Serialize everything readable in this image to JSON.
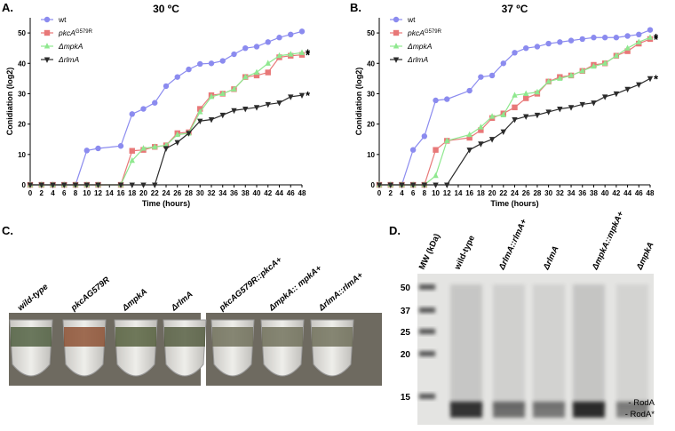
{
  "chart_data": [
    {
      "type": "line",
      "panel_label": "A.",
      "title": "30 ºC",
      "x_label": "Time (hours)",
      "y_label": "Conidiation (log2)",
      "xlim": [
        0,
        48
      ],
      "xticks": [
        0,
        2,
        4,
        6,
        8,
        10,
        12,
        14,
        16,
        18,
        20,
        22,
        24,
        26,
        28,
        30,
        32,
        34,
        36,
        38,
        40,
        42,
        44,
        46,
        48
      ],
      "ylim": [
        0,
        55
      ],
      "yticks": [
        0,
        10,
        20,
        30,
        40,
        50
      ],
      "legend": "top-left",
      "series": [
        {
          "name": "wt",
          "color": "#8b8bef",
          "marker": "circle",
          "x": [
            0,
            2,
            4,
            6,
            8,
            10,
            12,
            16,
            18,
            20,
            22,
            24,
            26,
            28,
            30,
            32,
            34,
            36,
            38,
            40,
            42,
            44,
            46,
            48
          ],
          "values": [
            0,
            0,
            0,
            0,
            0,
            11.3,
            12,
            12.8,
            23.3,
            25,
            27,
            32.5,
            35.5,
            38,
            39.8,
            40,
            40.8,
            43,
            45,
            45.5,
            47,
            48.5,
            49.5,
            50.5
          ]
        },
        {
          "name": "pkcA",
          "superscript": "G579R",
          "color": "#e87878",
          "marker": "square",
          "x": [
            0,
            2,
            4,
            6,
            8,
            10,
            12,
            16,
            18,
            20,
            22,
            24,
            26,
            28,
            30,
            32,
            34,
            36,
            38,
            40,
            42,
            44,
            46,
            48
          ],
          "values": [
            0,
            0,
            0,
            0,
            0,
            0,
            0,
            0,
            11.2,
            11.5,
            12.5,
            13,
            17,
            17.3,
            25,
            29.5,
            30,
            31.5,
            35.5,
            36,
            37,
            42,
            42.5,
            42.8
          ]
        },
        {
          "name": "ΔmpkA",
          "color": "#8fe88f",
          "marker": "triangle-up",
          "x": [
            0,
            2,
            4,
            6,
            8,
            10,
            12,
            16,
            18,
            20,
            22,
            24,
            26,
            28,
            30,
            32,
            34,
            36,
            38,
            40,
            42,
            44,
            46,
            48
          ],
          "values": [
            0,
            0,
            0,
            0,
            0,
            0,
            0,
            0,
            8,
            12,
            12.5,
            13,
            16.5,
            17,
            24,
            29,
            30,
            31.5,
            35.5,
            37,
            40,
            42.5,
            43,
            43.5
          ]
        },
        {
          "name": "ΔrlmA",
          "color": "#2b2b2b",
          "marker": "triangle-down",
          "x": [
            0,
            2,
            4,
            6,
            8,
            10,
            12,
            16,
            18,
            20,
            22,
            24,
            26,
            28,
            30,
            32,
            34,
            36,
            38,
            40,
            42,
            44,
            46,
            48
          ],
          "values": [
            0,
            0,
            0,
            0,
            0,
            0,
            0,
            0,
            0,
            0,
            0,
            12,
            14,
            17,
            21,
            21.5,
            23,
            24.5,
            25,
            25.5,
            26.5,
            27,
            29,
            29.5
          ]
        }
      ],
      "annotations": [
        {
          "text": "*",
          "series": 1
        },
        {
          "text": "*",
          "series": 2
        },
        {
          "text": "*",
          "series": 3
        }
      ]
    },
    {
      "type": "line",
      "panel_label": "B.",
      "title": "37 ºC",
      "x_label": "Time (hours)",
      "y_label": "Conidiation (log2)",
      "xlim": [
        0,
        48
      ],
      "xticks": [
        0,
        2,
        4,
        6,
        8,
        10,
        12,
        14,
        16,
        18,
        20,
        22,
        24,
        26,
        28,
        30,
        32,
        34,
        36,
        38,
        40,
        42,
        44,
        46,
        48
      ],
      "ylim": [
        0,
        55
      ],
      "yticks": [
        0,
        10,
        20,
        30,
        40,
        50
      ],
      "legend": "top-left",
      "series": [
        {
          "name": "wt",
          "color": "#8b8bef",
          "marker": "circle",
          "x": [
            0,
            2,
            4,
            6,
            8,
            10,
            12,
            16,
            18,
            20,
            22,
            24,
            26,
            28,
            30,
            32,
            34,
            36,
            38,
            40,
            42,
            44,
            46,
            48
          ],
          "values": [
            0,
            0,
            0,
            11.5,
            16,
            27.8,
            28.2,
            31,
            35.5,
            36,
            40,
            43.5,
            45,
            45.5,
            46.5,
            47,
            47.5,
            48,
            48.5,
            48.5,
            48.5,
            49,
            49.5,
            51
          ]
        },
        {
          "name": "pkcA",
          "superscript": "G579R",
          "color": "#e87878",
          "marker": "square",
          "x": [
            0,
            2,
            4,
            6,
            8,
            10,
            12,
            16,
            18,
            20,
            22,
            24,
            26,
            28,
            30,
            32,
            34,
            36,
            38,
            40,
            42,
            44,
            46,
            48
          ],
          "values": [
            0,
            0,
            0,
            0,
            0,
            11.5,
            14.5,
            15.5,
            18,
            22,
            23.5,
            25.5,
            28.5,
            30,
            34,
            35.5,
            36,
            37.5,
            39.5,
            40,
            42.5,
            44,
            46.5,
            48
          ]
        },
        {
          "name": "ΔmpkA",
          "color": "#8fe88f",
          "marker": "triangle-up",
          "x": [
            0,
            2,
            4,
            6,
            8,
            10,
            12,
            16,
            18,
            20,
            22,
            24,
            26,
            28,
            30,
            32,
            34,
            36,
            38,
            40,
            42,
            44,
            46,
            48
          ],
          "values": [
            0,
            0,
            0,
            0,
            0,
            3,
            14.5,
            16.5,
            19,
            22.5,
            23,
            29.5,
            30,
            30.5,
            34,
            35,
            36,
            37.5,
            39,
            40,
            42.5,
            45,
            47,
            48.5
          ]
        },
        {
          "name": "ΔrlmA",
          "color": "#2b2b2b",
          "marker": "triangle-down",
          "x": [
            0,
            2,
            4,
            6,
            8,
            10,
            12,
            16,
            18,
            20,
            22,
            24,
            26,
            28,
            30,
            32,
            34,
            36,
            38,
            40,
            42,
            44,
            46,
            48
          ],
          "values": [
            0,
            0,
            0,
            0,
            0,
            0,
            0,
            11.5,
            13.5,
            15,
            17.5,
            21.5,
            22.5,
            23,
            24,
            25,
            25.5,
            26.5,
            27,
            29,
            30,
            31.5,
            33,
            35
          ]
        }
      ],
      "annotations": [
        {
          "text": "*",
          "series": 1
        },
        {
          "text": "*",
          "series": 2
        },
        {
          "text": "*",
          "series": 3
        }
      ]
    }
  ],
  "photo_panel": {
    "label": "C.",
    "lanes": [
      "wild-type",
      "pkcAG579R",
      "ΔmpkA",
      "ΔrlmA",
      "pkcAG579R::pkcA+",
      "ΔmpkA:: mpkA+",
      "ΔrlmA::rlmA+"
    ]
  },
  "gel_panel": {
    "label": "D.",
    "lanes": [
      "MW (kDa)",
      "wild-type",
      "ΔrlmA::rlmA+",
      "ΔrlmA",
      "ΔmpkA::mpkA+",
      "ΔmpkA"
    ],
    "mw_markers": [
      50,
      37,
      25,
      20,
      15
    ],
    "band_labels": [
      "- RodA",
      "- RodA*"
    ]
  }
}
